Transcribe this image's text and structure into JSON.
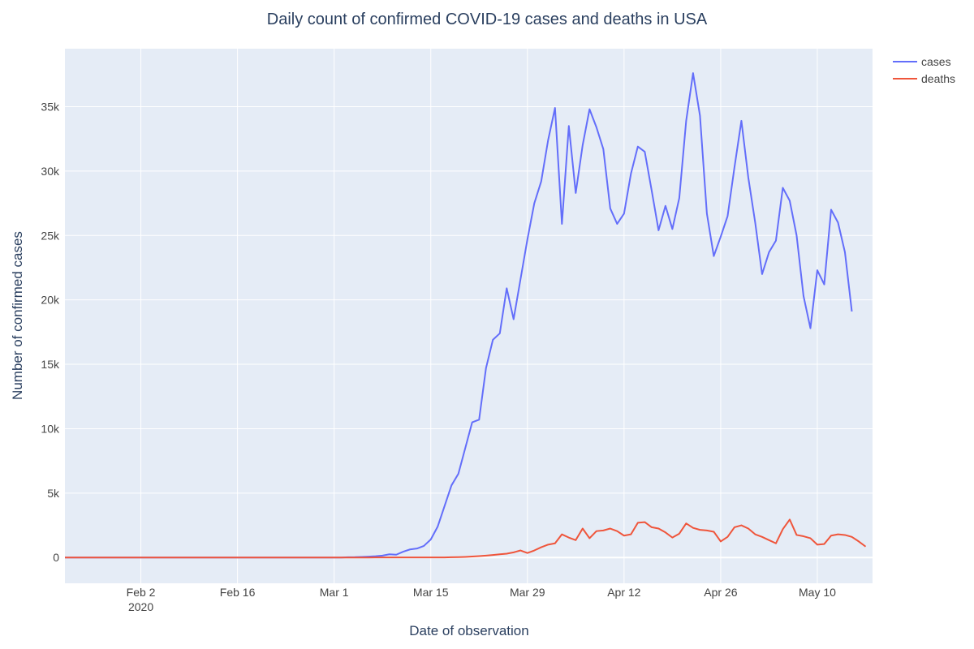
{
  "colors": {
    "cases": "#636efa",
    "deaths": "#ef553b",
    "plot_bg": "#e5ecf6",
    "grid": "#ffffff",
    "zeroline": "#ffffff"
  },
  "chart_data": {
    "type": "line",
    "title": "Daily count of confirmed COVID-19 cases and deaths in USA",
    "xlabel": "Date of observation",
    "ylabel": "Number of confirmed cases",
    "x_start": "2020-01-22",
    "x_range": [
      "2020-01-22",
      "2020-05-18"
    ],
    "ylim": [
      -2000,
      39500
    ],
    "grid": true,
    "legend_placement": "top-right",
    "x_ticks": [
      {
        "date": "2020-02-02",
        "label": "Feb 2",
        "sublabel": "2020"
      },
      {
        "date": "2020-02-16",
        "label": "Feb 16",
        "sublabel": ""
      },
      {
        "date": "2020-03-01",
        "label": "Mar 1",
        "sublabel": ""
      },
      {
        "date": "2020-03-15",
        "label": "Mar 15",
        "sublabel": ""
      },
      {
        "date": "2020-03-29",
        "label": "Mar 29",
        "sublabel": ""
      },
      {
        "date": "2020-04-12",
        "label": "Apr 12",
        "sublabel": ""
      },
      {
        "date": "2020-04-26",
        "label": "Apr 26",
        "sublabel": ""
      },
      {
        "date": "2020-05-10",
        "label": "May 10",
        "sublabel": ""
      }
    ],
    "y_ticks": [
      {
        "value": 0,
        "label": "0"
      },
      {
        "value": 5000,
        "label": "5k"
      },
      {
        "value": 10000,
        "label": "10k"
      },
      {
        "value": 15000,
        "label": "15k"
      },
      {
        "value": 20000,
        "label": "20k"
      },
      {
        "value": 25000,
        "label": "25k"
      },
      {
        "value": 30000,
        "label": "30k"
      },
      {
        "value": 35000,
        "label": "35k"
      }
    ],
    "series": [
      {
        "name": "cases",
        "values": [
          1,
          0,
          1,
          0,
          3,
          0,
          0,
          0,
          0,
          2,
          1,
          0,
          3,
          0,
          0,
          0,
          0,
          1,
          0,
          1,
          0,
          0,
          0,
          0,
          0,
          0,
          0,
          0,
          0,
          0,
          0,
          0,
          0,
          0,
          0,
          0,
          0,
          0,
          0,
          0,
          0,
          25,
          30,
          50,
          70,
          100,
          150,
          250,
          220,
          450,
          630,
          700,
          900,
          1400,
          2400,
          4000,
          5600,
          6500,
          8500,
          10500,
          10700,
          14700,
          16900,
          17400,
          20900,
          18500,
          21600,
          24700,
          27500,
          29200,
          32400,
          34900,
          25900,
          33500,
          28300,
          32000,
          34800,
          33400,
          31700,
          27100,
          25900,
          26700,
          29800,
          31900,
          31500,
          28500,
          25400,
          27300,
          25500,
          27900,
          33900,
          37600,
          34300,
          26700,
          23400,
          24900,
          26500,
          30300,
          33900,
          29500,
          26000,
          22000,
          23700,
          24600,
          28700,
          27700,
          25000,
          20300,
          17800,
          22300,
          21200,
          27000,
          26000,
          23700,
          19100
        ]
      },
      {
        "name": "deaths",
        "values": [
          0,
          0,
          0,
          0,
          0,
          0,
          0,
          0,
          0,
          0,
          0,
          0,
          0,
          0,
          0,
          0,
          0,
          0,
          0,
          0,
          0,
          0,
          0,
          0,
          0,
          0,
          0,
          0,
          0,
          0,
          0,
          0,
          0,
          0,
          0,
          0,
          0,
          0,
          0,
          0,
          1,
          1,
          2,
          2,
          3,
          4,
          5,
          5,
          6,
          7,
          8,
          8,
          9,
          9,
          10,
          10,
          20,
          30,
          50,
          80,
          110,
          150,
          200,
          250,
          300,
          400,
          550,
          350,
          550,
          800,
          1000,
          1100,
          1800,
          1550,
          1350,
          2250,
          1500,
          2050,
          2100,
          2250,
          2050,
          1700,
          1800,
          2700,
          2750,
          2350,
          2250,
          1950,
          1550,
          1850,
          2650,
          2300,
          2150,
          2100,
          2000,
          1250,
          1600,
          2350,
          2500,
          2250,
          1800,
          1600,
          1350,
          1100,
          2200,
          2950,
          1750,
          1650,
          1500,
          1000,
          1050,
          1700,
          1800,
          1750,
          1600,
          1250,
          850
        ]
      }
    ]
  }
}
